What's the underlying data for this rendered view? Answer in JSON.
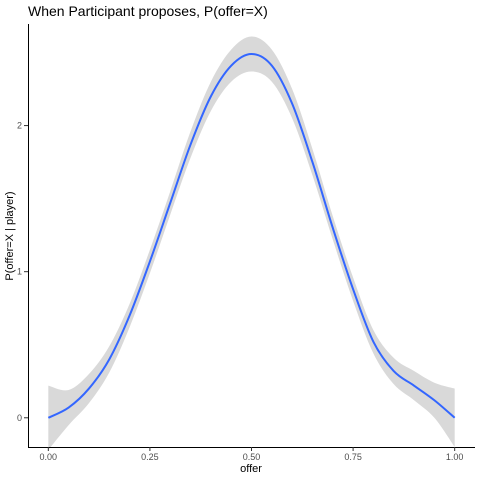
{
  "chart_data": {
    "type": "line",
    "title": "When Participant proposes, P(offer=X)",
    "xlabel": "offer",
    "ylabel": "P(offer=X | player)",
    "xlim": [
      -0.05,
      1.05
    ],
    "ylim": [
      -0.2,
      2.75
    ],
    "x_ticks": [
      0.0,
      0.25,
      0.5,
      0.75,
      1.0
    ],
    "x_tick_labels": [
      "0.00",
      "0.25",
      "0.50",
      "0.75",
      "1.00"
    ],
    "y_ticks": [
      0,
      1,
      2
    ],
    "y_tick_labels": [
      "0",
      "1",
      "2"
    ],
    "grid": false,
    "series": [
      {
        "color": "#3366FF",
        "band_color": "#d9d9d9",
        "points": [
          {
            "x": 0.0,
            "y": 0.0,
            "lo": -0.22,
            "hi": 0.22
          },
          {
            "x": 0.05,
            "y": 0.07,
            "lo": -0.05,
            "hi": 0.19
          },
          {
            "x": 0.1,
            "y": 0.2,
            "lo": 0.1,
            "hi": 0.3
          },
          {
            "x": 0.15,
            "y": 0.4,
            "lo": 0.31,
            "hi": 0.49
          },
          {
            "x": 0.2,
            "y": 0.7,
            "lo": 0.62,
            "hi": 0.78
          },
          {
            "x": 0.25,
            "y": 1.07,
            "lo": 0.99,
            "hi": 1.15
          },
          {
            "x": 0.3,
            "y": 1.47,
            "lo": 1.39,
            "hi": 1.55
          },
          {
            "x": 0.35,
            "y": 1.87,
            "lo": 1.78,
            "hi": 1.96
          },
          {
            "x": 0.4,
            "y": 2.2,
            "lo": 2.1,
            "hi": 2.3
          },
          {
            "x": 0.45,
            "y": 2.41,
            "lo": 2.3,
            "hi": 2.52
          },
          {
            "x": 0.5,
            "y": 2.49,
            "lo": 2.37,
            "hi": 2.61
          },
          {
            "x": 0.55,
            "y": 2.41,
            "lo": 2.3,
            "hi": 2.52
          },
          {
            "x": 0.6,
            "y": 2.15,
            "lo": 2.05,
            "hi": 2.25
          },
          {
            "x": 0.65,
            "y": 1.75,
            "lo": 1.66,
            "hi": 1.84
          },
          {
            "x": 0.7,
            "y": 1.3,
            "lo": 1.22,
            "hi": 1.38
          },
          {
            "x": 0.75,
            "y": 0.88,
            "lo": 0.8,
            "hi": 0.96
          },
          {
            "x": 0.8,
            "y": 0.52,
            "lo": 0.44,
            "hi": 0.6
          },
          {
            "x": 0.85,
            "y": 0.32,
            "lo": 0.23,
            "hi": 0.41
          },
          {
            "x": 0.9,
            "y": 0.22,
            "lo": 0.12,
            "hi": 0.32
          },
          {
            "x": 0.95,
            "y": 0.12,
            "lo": 0.0,
            "hi": 0.24
          },
          {
            "x": 1.0,
            "y": 0.0,
            "lo": -0.2,
            "hi": 0.2
          }
        ]
      }
    ]
  }
}
